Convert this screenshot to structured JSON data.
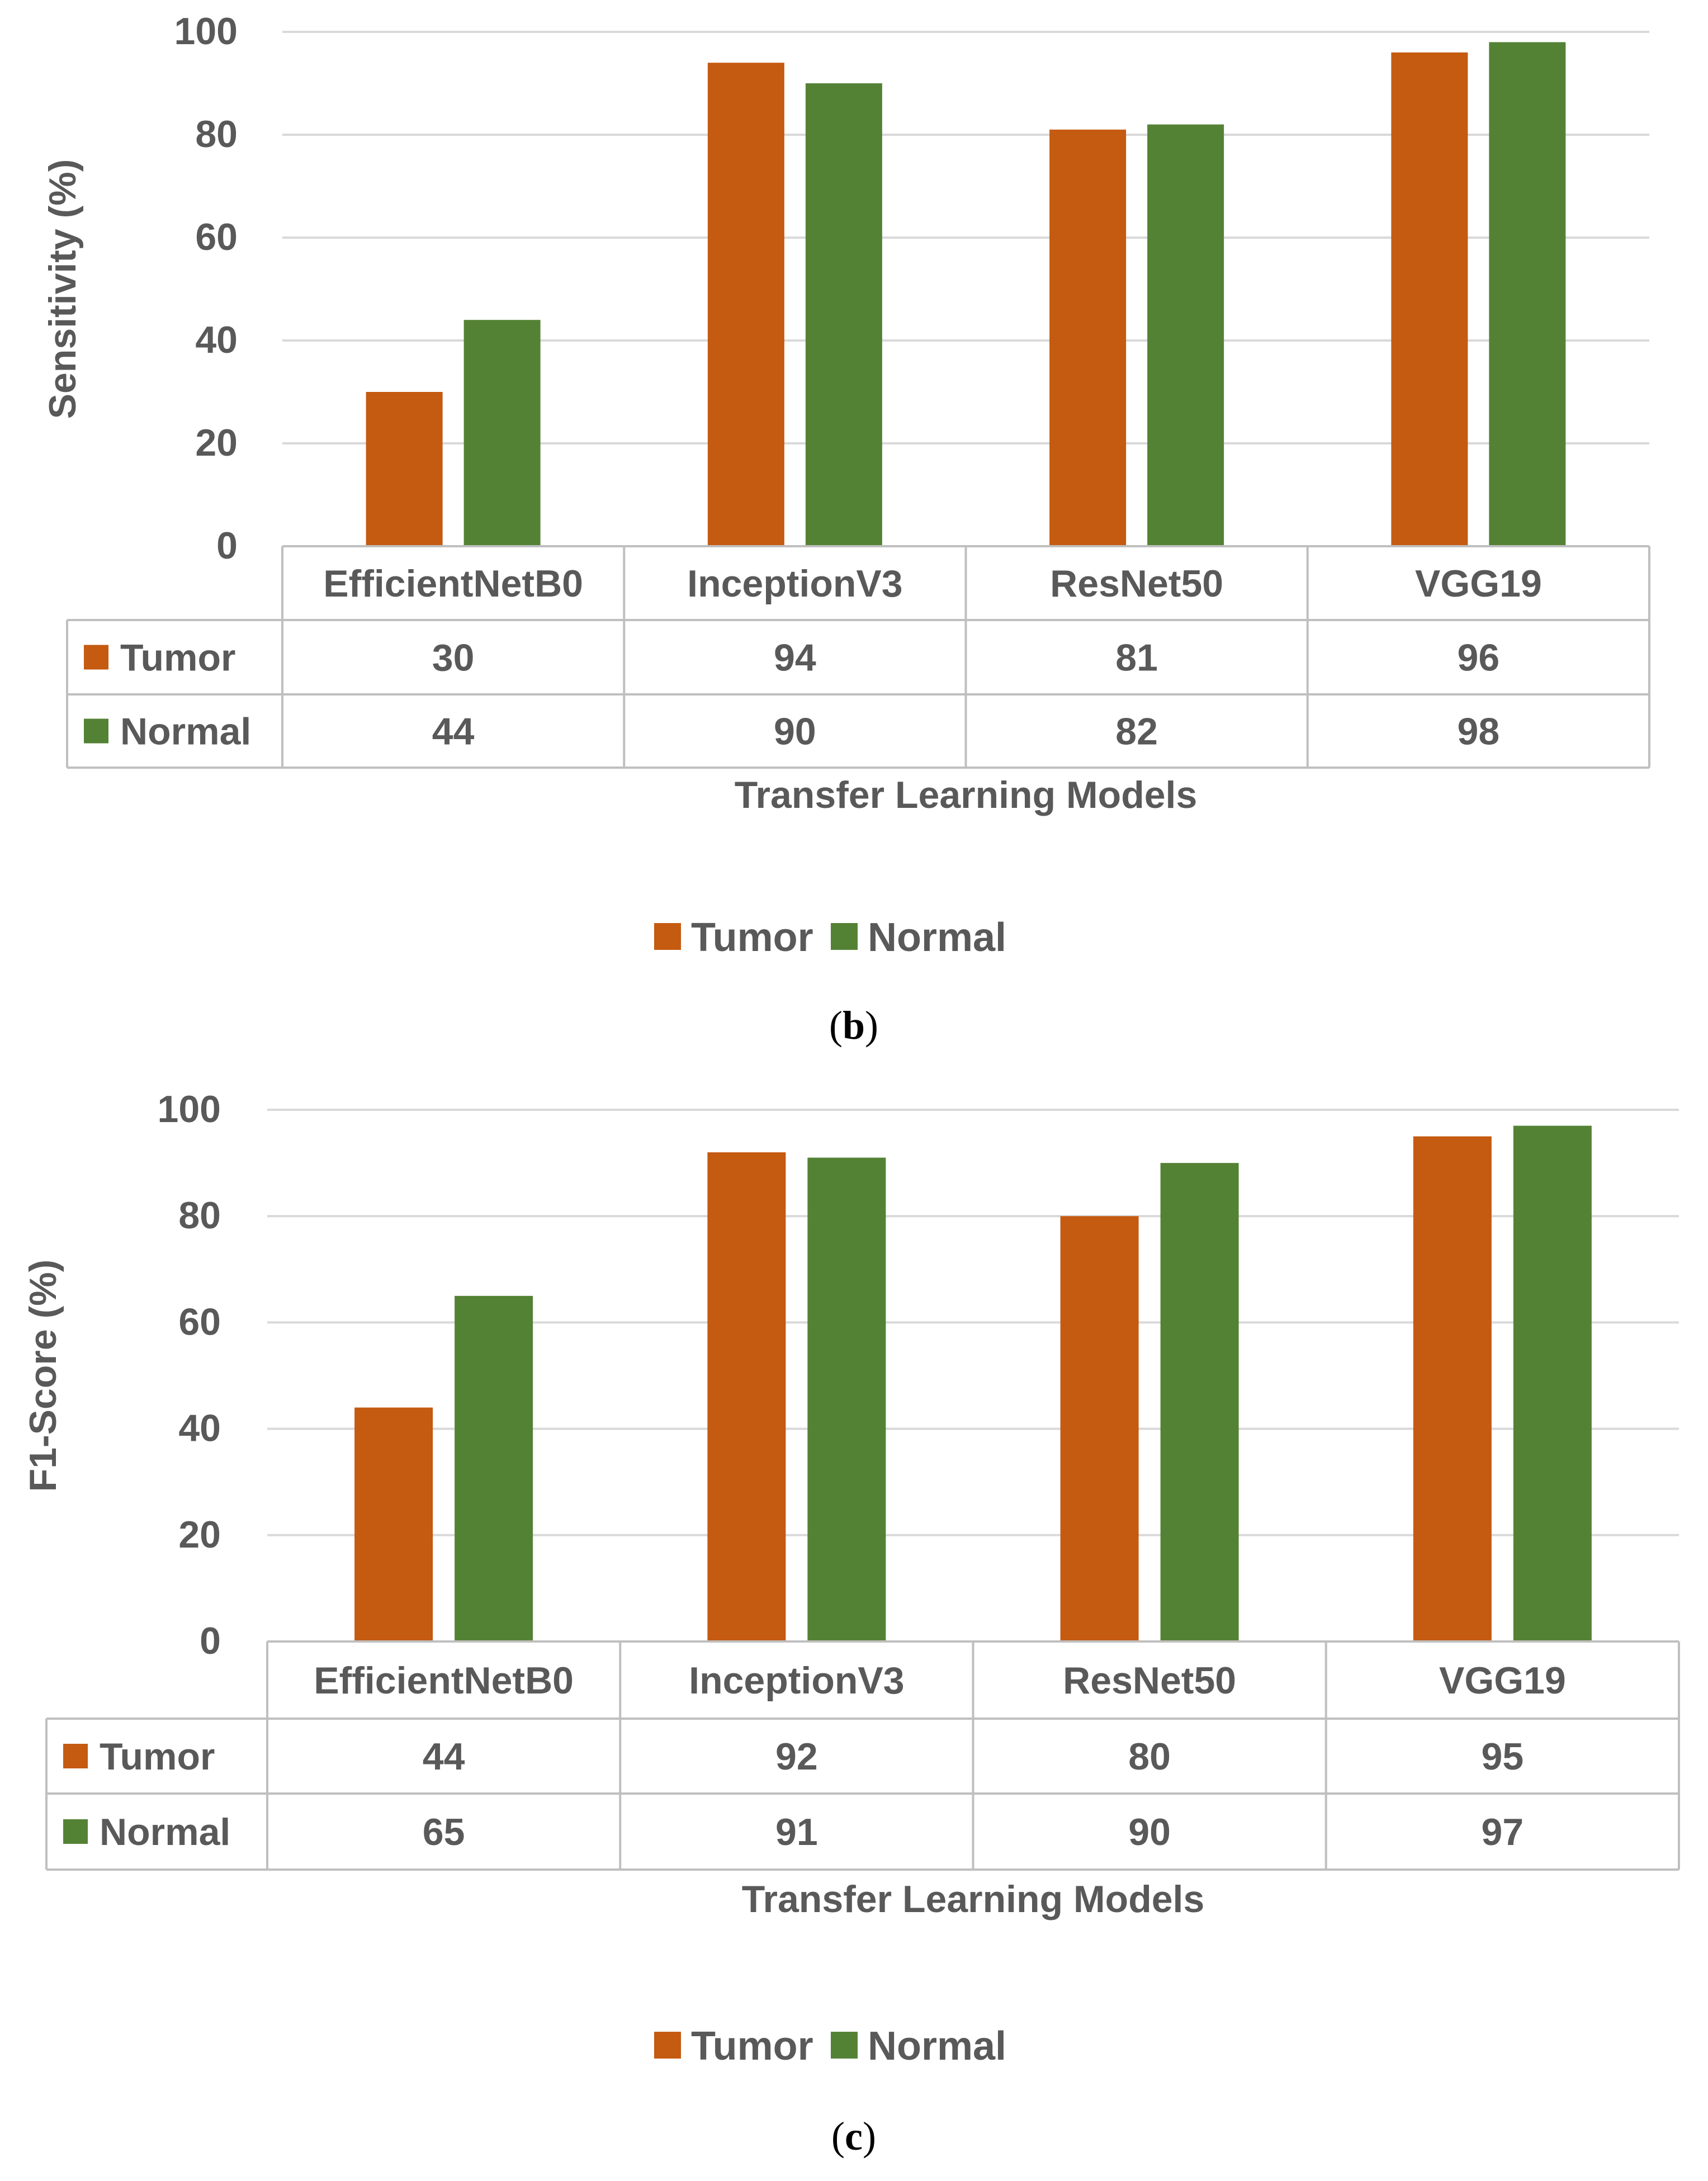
{
  "colors": {
    "tumor": "#c55a11",
    "normal": "#548235",
    "grid": "#d9d9d9",
    "text": "#595959"
  },
  "chart_data": [
    {
      "type": "bar",
      "caption_letter": "b",
      "categories": [
        "EfficientNetB0",
        "InceptionV3",
        "ResNet50",
        "VGG19"
      ],
      "series": [
        {
          "name": "Tumor",
          "values": [
            30,
            94,
            81,
            96
          ]
        },
        {
          "name": "Normal",
          "values": [
            44,
            90,
            82,
            98
          ]
        }
      ],
      "table_values": [
        [
          "30",
          "94",
          "81",
          "96"
        ],
        [
          "44",
          "90",
          "82",
          "98"
        ]
      ],
      "ylabel": "Sensitivity (%)",
      "xlabel": "Transfer Learning Models",
      "ylim": [
        0,
        100
      ],
      "yticks": [
        0,
        20,
        40,
        60,
        80,
        100
      ],
      "ytick_labels": [
        "0",
        "20",
        "40",
        "60",
        "80",
        "100"
      ],
      "legend": [
        "Tumor",
        "Normal"
      ],
      "legend_position": "bottom",
      "grid": true,
      "data_table": true
    },
    {
      "type": "bar",
      "caption_letter": "c",
      "categories": [
        "EfficientNetB0",
        "InceptionV3",
        "ResNet50",
        "VGG19"
      ],
      "series": [
        {
          "name": "Tumor",
          "values": [
            44,
            92,
            80,
            95
          ]
        },
        {
          "name": "Normal",
          "values": [
            65,
            91,
            90,
            97
          ]
        }
      ],
      "table_values": [
        [
          "44",
          "92",
          "80",
          "95"
        ],
        [
          "65",
          "91",
          "90",
          "97"
        ]
      ],
      "ylabel": "F1-Score (%)",
      "xlabel": "Transfer Learning Models",
      "ylim": [
        0,
        100
      ],
      "yticks": [
        0,
        20,
        40,
        60,
        80,
        100
      ],
      "ytick_labels": [
        "0",
        "20",
        "40",
        "60",
        "80",
        "100"
      ],
      "legend": [
        "Tumor",
        "Normal"
      ],
      "legend_position": "bottom",
      "grid": true,
      "data_table": true
    }
  ]
}
